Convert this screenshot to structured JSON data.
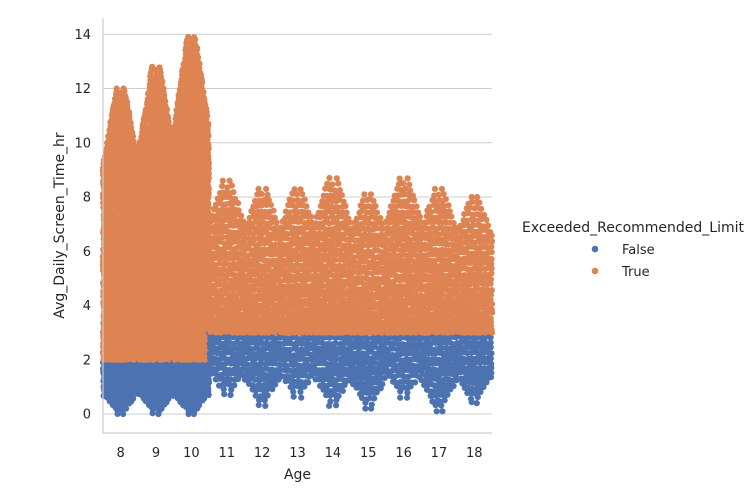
{
  "chart_data": {
    "type": "scatter",
    "subtype": "swarm",
    "xlabel": "Age",
    "ylabel": "Avg_Daily_Screen_Time_hr",
    "categories": [
      "8",
      "9",
      "10",
      "11",
      "12",
      "13",
      "14",
      "15",
      "16",
      "17",
      "18"
    ],
    "ylim": [
      -0.7,
      14.6
    ],
    "yticks": [
      "0",
      "2",
      "4",
      "6",
      "8",
      "10",
      "12",
      "14"
    ],
    "grid": "horizontal",
    "legend": {
      "title": "Exceeded_Recommended_Limit",
      "placement": "right",
      "entries": [
        "False",
        "True"
      ]
    },
    "series": [
      {
        "name": "False",
        "color": "#4c72b0",
        "ranges": [
          [
            0,
            2.0
          ],
          [
            0,
            2.0
          ],
          [
            0,
            2.0
          ],
          [
            0.7,
            3.0
          ],
          [
            0.3,
            3.0
          ],
          [
            0.6,
            3.0
          ],
          [
            0.3,
            3.0
          ],
          [
            0.2,
            3.0
          ],
          [
            0.6,
            3.0
          ],
          [
            0.1,
            3.0
          ],
          [
            0.4,
            3.0
          ]
        ]
      },
      {
        "name": "True",
        "color": "#dd8452",
        "ranges": [
          [
            2.0,
            12.0
          ],
          [
            2.0,
            12.8
          ],
          [
            2.0,
            13.9
          ],
          [
            3.0,
            8.6
          ],
          [
            3.0,
            8.3
          ],
          [
            3.0,
            8.3
          ],
          [
            3.0,
            8.7
          ],
          [
            3.0,
            8.1
          ],
          [
            3.0,
            8.7
          ],
          [
            3.0,
            8.3
          ],
          [
            3.0,
            8.0
          ]
        ]
      }
    ]
  }
}
